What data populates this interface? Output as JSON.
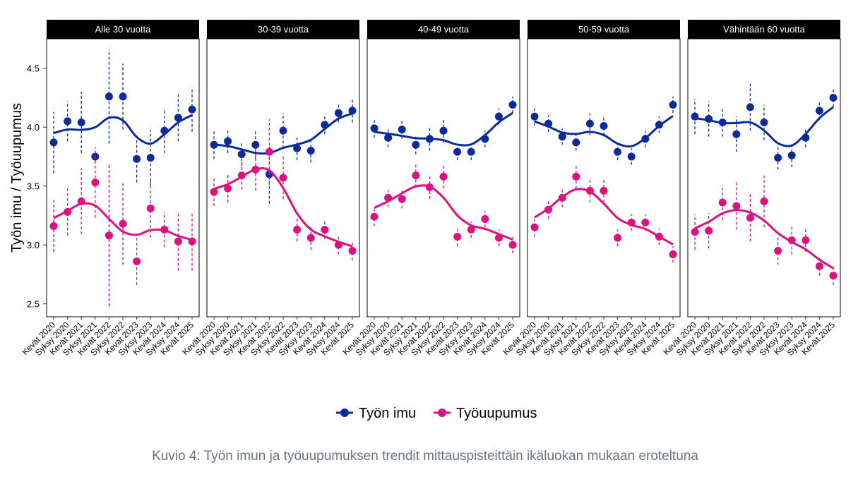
{
  "y_label": "Työn imu / Työuupumus",
  "caption": "Kuvio 4: Työn imun ja työuupumuksen trendit mittauspisteittäin ikäluokan mukaan eroteltuna",
  "chart_data": [
    {
      "type": "line",
      "title": "Alle 30 vuotta",
      "ylim": [
        2.39,
        4.75
      ],
      "yticks": [
        2.5,
        {
          "value": 3,
          "label": "3.0"
        },
        3.5,
        {
          "value": 4,
          "label": "4.0"
        },
        4.5
      ],
      "categories": [
        "Kevät 2020",
        "Syksy 2020",
        "Kevät 2021",
        "Syksy 2021",
        "Kevät 2022",
        "Syksy 2022",
        "Kevät 2023",
        "Syksy 2023",
        "Kevät 2024",
        "Syksy 2024",
        "Kevät 2025"
      ],
      "series": [
        {
          "name": "Työn imu",
          "color": "#0b2a9e",
          "values": [
            3.87,
            4.05,
            4.04,
            3.75,
            4.26,
            4.26,
            3.73,
            3.74,
            3.97,
            4.08,
            4.15
          ],
          "errors": [
            0.26,
            0.17,
            0.26,
            0.05,
            0.4,
            0.28,
            0.2,
            0.24,
            0.19,
            0.2,
            0.19
          ]
        },
        {
          "name": "Työuupumus",
          "color": "#e0107f",
          "values": [
            3.16,
            3.28,
            3.37,
            3.53,
            3.08,
            3.18,
            2.86,
            3.31,
            3.13,
            3.03,
            3.03
          ],
          "errors": [
            0.22,
            0.2,
            0.28,
            0.3,
            0.6,
            0.35,
            0.2,
            0.25,
            0.15,
            0.25,
            0.25
          ]
        }
      ]
    },
    {
      "type": "line",
      "title": "30-39 vuotta",
      "categories": [
        "Kevät 2020",
        "Syksy 2020",
        "Kevät 2021",
        "Syksy 2021",
        "Kevät 2022",
        "Syksy 2022",
        "Kevät 2023",
        "Syksy 2023",
        "Kevät 2024",
        "Syksy 2024",
        "Kevät 2025"
      ],
      "series": [
        {
          "name": "Työn imu",
          "color": "#0b2a9e",
          "values": [
            3.85,
            3.88,
            3.77,
            3.85,
            3.6,
            3.97,
            3.82,
            3.8,
            4.02,
            4.12,
            4.14
          ],
          "errors": [
            0.12,
            0.1,
            0.1,
            0.12,
            0.25,
            0.15,
            0.1,
            0.1,
            0.08,
            0.08,
            0.1
          ]
        },
        {
          "name": "Työuupumus",
          "color": "#e0107f",
          "values": [
            3.45,
            3.48,
            3.59,
            3.64,
            3.79,
            3.57,
            3.13,
            3.06,
            3.13,
            3.0,
            2.95
          ],
          "errors": [
            0.12,
            0.12,
            0.12,
            0.18,
            0.28,
            0.18,
            0.1,
            0.1,
            0.08,
            0.08,
            0.08
          ]
        }
      ]
    },
    {
      "type": "line",
      "title": "40-49 vuotta",
      "categories": [
        "Kevät 2020",
        "Syksy 2020",
        "Kevät 2021",
        "Syksy 2021",
        "Kevät 2022",
        "Syksy 2022",
        "Kevät 2023",
        "Syksy 2023",
        "Kevät 2024",
        "Syksy 2024",
        "Kevät 2025"
      ],
      "series": [
        {
          "name": "Työn imu",
          "color": "#0b2a9e",
          "values": [
            3.99,
            3.91,
            3.98,
            3.85,
            3.9,
            3.97,
            3.79,
            3.79,
            3.9,
            4.09,
            4.19
          ],
          "errors": [
            0.08,
            0.08,
            0.08,
            0.08,
            0.1,
            0.1,
            0.07,
            0.07,
            0.07,
            0.07,
            0.07
          ]
        },
        {
          "name": "Työuupumus",
          "color": "#e0107f",
          "values": [
            3.24,
            3.4,
            3.39,
            3.59,
            3.49,
            3.58,
            3.07,
            3.13,
            3.22,
            3.06,
            3.0
          ],
          "errors": [
            0.08,
            0.08,
            0.08,
            0.1,
            0.1,
            0.1,
            0.08,
            0.07,
            0.07,
            0.07,
            0.07
          ]
        }
      ]
    },
    {
      "type": "line",
      "title": "50-59 vuotta",
      "categories": [
        "Kevät 2020",
        "Syksy 2020",
        "Kevät 2021",
        "Syksy 2021",
        "Kevät 2022",
        "Syksy 2022",
        "Kevät 2023",
        "Syksy 2023",
        "Kevät 2024",
        "Syksy 2024",
        "Kevät 2025"
      ],
      "series": [
        {
          "name": "Työn imu",
          "color": "#0b2a9e",
          "values": [
            4.09,
            4.03,
            3.92,
            3.87,
            4.03,
            4.01,
            3.79,
            3.75,
            3.9,
            4.02,
            4.19
          ],
          "errors": [
            0.08,
            0.07,
            0.07,
            0.07,
            0.1,
            0.08,
            0.07,
            0.07,
            0.07,
            0.07,
            0.07
          ]
        },
        {
          "name": "Työuupumus",
          "color": "#e0107f",
          "values": [
            3.15,
            3.3,
            3.4,
            3.58,
            3.46,
            3.46,
            3.06,
            3.19,
            3.19,
            3.07,
            2.92
          ],
          "errors": [
            0.08,
            0.08,
            0.08,
            0.1,
            0.1,
            0.1,
            0.07,
            0.07,
            0.07,
            0.07,
            0.07
          ]
        }
      ]
    },
    {
      "type": "line",
      "title": "Vähintään 60 vuotta",
      "categories": [
        "Kevät 2020",
        "Syksy 2020",
        "Kevät 2021",
        "Syksy 2021",
        "Kevät 2022",
        "Syksy 2022",
        "Kevät 2023",
        "Syksy 2023",
        "Kevät 2024",
        "Syksy 2024",
        "Kevät 2025"
      ],
      "series": [
        {
          "name": "Työn imu",
          "color": "#0b2a9e",
          "values": [
            4.09,
            4.07,
            4.04,
            3.94,
            4.17,
            4.04,
            3.74,
            3.76,
            3.91,
            4.14,
            4.25
          ],
          "errors": [
            0.15,
            0.15,
            0.12,
            0.15,
            0.2,
            0.15,
            0.1,
            0.1,
            0.08,
            0.08,
            0.08
          ]
        },
        {
          "name": "Työuupumus",
          "color": "#e0107f",
          "values": [
            3.11,
            3.12,
            3.36,
            3.33,
            3.23,
            3.37,
            2.95,
            3.04,
            3.04,
            2.82,
            2.74
          ],
          "errors": [
            0.15,
            0.15,
            0.15,
            0.2,
            0.2,
            0.22,
            0.12,
            0.12,
            0.1,
            0.08,
            0.08
          ]
        }
      ]
    }
  ]
}
